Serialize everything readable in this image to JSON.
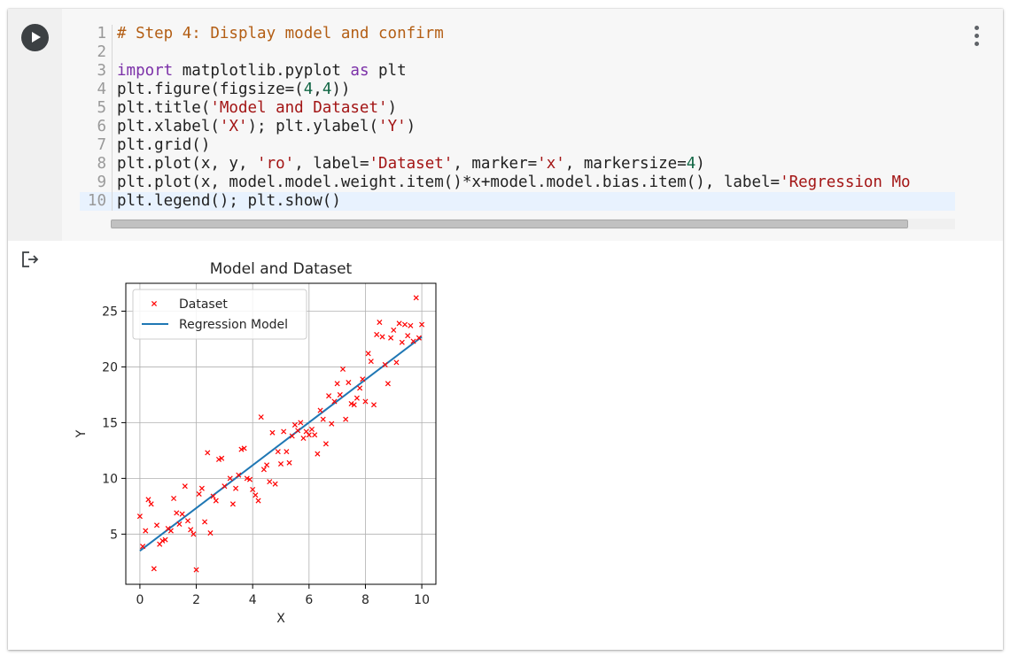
{
  "code_cell": {
    "lines": [
      {
        "num": "1",
        "tokens": [
          {
            "t": "# Step 4: Display model and confirm",
            "c": "cm"
          }
        ]
      },
      {
        "num": "2",
        "tokens": []
      },
      {
        "num": "3",
        "tokens": [
          {
            "t": "import",
            "c": "kw"
          },
          {
            "t": " matplotlib.pyplot ",
            "c": ""
          },
          {
            "t": "as",
            "c": "kw"
          },
          {
            "t": " plt",
            "c": ""
          }
        ]
      },
      {
        "num": "4",
        "tokens": [
          {
            "t": "plt.figure(figsize=(",
            "c": ""
          },
          {
            "t": "4",
            "c": "num"
          },
          {
            "t": ",",
            "c": ""
          },
          {
            "t": "4",
            "c": "num"
          },
          {
            "t": "))",
            "c": ""
          }
        ]
      },
      {
        "num": "5",
        "tokens": [
          {
            "t": "plt.title(",
            "c": ""
          },
          {
            "t": "'Model and Dataset'",
            "c": "str"
          },
          {
            "t": ")",
            "c": ""
          }
        ]
      },
      {
        "num": "6",
        "tokens": [
          {
            "t": "plt.xlabel(",
            "c": ""
          },
          {
            "t": "'X'",
            "c": "str"
          },
          {
            "t": "); plt.ylabel(",
            "c": ""
          },
          {
            "t": "'Y'",
            "c": "str"
          },
          {
            "t": ")",
            "c": ""
          }
        ]
      },
      {
        "num": "7",
        "tokens": [
          {
            "t": "plt.grid()",
            "c": ""
          }
        ]
      },
      {
        "num": "8",
        "tokens": [
          {
            "t": "plt.plot(x, y, ",
            "c": ""
          },
          {
            "t": "'ro'",
            "c": "str"
          },
          {
            "t": ", label=",
            "c": ""
          },
          {
            "t": "'Dataset'",
            "c": "str"
          },
          {
            "t": ", marker=",
            "c": ""
          },
          {
            "t": "'x'",
            "c": "str"
          },
          {
            "t": ", markersize=",
            "c": ""
          },
          {
            "t": "4",
            "c": "num"
          },
          {
            "t": ")",
            "c": ""
          }
        ]
      },
      {
        "num": "9",
        "tokens": [
          {
            "t": "plt.plot(x, model.model.weight.item()*x+model.model.bias.item(), label=",
            "c": ""
          },
          {
            "t": "'Regression Mo",
            "c": "str"
          }
        ]
      },
      {
        "num": "10",
        "tokens": [
          {
            "t": "plt.legend(); plt.show()",
            "c": ""
          }
        ]
      }
    ]
  },
  "icons": {
    "run": "play-circle-icon",
    "menu": "more-vert-icon",
    "output": "output-redirect-icon"
  },
  "colors": {
    "point": "#ff0000",
    "line": "#1f77b4",
    "code_bg": "#f7f7f7"
  },
  "chart_data": {
    "type": "scatter",
    "title": "Model and Dataset",
    "xlabel": "X",
    "ylabel": "Y",
    "xlim": [
      -0.5,
      10.5
    ],
    "ylim": [
      0.5,
      27.5
    ],
    "xticks": [
      0,
      2,
      4,
      6,
      8,
      10
    ],
    "yticks": [
      5,
      10,
      15,
      20,
      25
    ],
    "grid": true,
    "legend": {
      "position": "top-left",
      "entries": [
        "Dataset",
        "Regression Model"
      ]
    },
    "series": [
      {
        "name": "Dataset",
        "kind": "scatter",
        "marker": "x",
        "color": "#ff0000",
        "points": [
          [
            0.0,
            6.6
          ],
          [
            0.1,
            3.9
          ],
          [
            0.2,
            5.3
          ],
          [
            0.3,
            8.1
          ],
          [
            0.4,
            7.7
          ],
          [
            0.5,
            1.9
          ],
          [
            0.6,
            5.8
          ],
          [
            0.7,
            4.1
          ],
          [
            0.8,
            4.4
          ],
          [
            0.9,
            4.5
          ],
          [
            1.0,
            5.5
          ],
          [
            1.1,
            5.3
          ],
          [
            1.2,
            8.2
          ],
          [
            1.3,
            6.9
          ],
          [
            1.4,
            5.9
          ],
          [
            1.5,
            6.8
          ],
          [
            1.6,
            9.3
          ],
          [
            1.7,
            6.2
          ],
          [
            1.8,
            5.4
          ],
          [
            1.9,
            5.0
          ],
          [
            2.0,
            1.8
          ],
          [
            2.1,
            8.6
          ],
          [
            2.2,
            9.1
          ],
          [
            2.3,
            6.1
          ],
          [
            2.4,
            12.3
          ],
          [
            2.5,
            5.1
          ],
          [
            2.6,
            8.4
          ],
          [
            2.7,
            8.0
          ],
          [
            2.8,
            11.7
          ],
          [
            2.9,
            11.8
          ],
          [
            3.0,
            9.3
          ],
          [
            3.2,
            10.0
          ],
          [
            3.3,
            7.7
          ],
          [
            3.4,
            9.1
          ],
          [
            3.5,
            10.3
          ],
          [
            3.6,
            12.6
          ],
          [
            3.7,
            12.7
          ],
          [
            3.8,
            10.0
          ],
          [
            3.9,
            9.9
          ],
          [
            4.0,
            9.0
          ],
          [
            4.1,
            8.5
          ],
          [
            4.2,
            8.0
          ],
          [
            4.3,
            15.5
          ],
          [
            4.4,
            10.8
          ],
          [
            4.5,
            11.2
          ],
          [
            4.6,
            9.7
          ],
          [
            4.7,
            14.1
          ],
          [
            4.8,
            9.5
          ],
          [
            4.9,
            12.4
          ],
          [
            5.0,
            11.3
          ],
          [
            5.1,
            14.2
          ],
          [
            5.2,
            12.4
          ],
          [
            5.3,
            11.4
          ],
          [
            5.4,
            13.8
          ],
          [
            5.5,
            14.8
          ],
          [
            5.6,
            14.3
          ],
          [
            5.7,
            15.0
          ],
          [
            5.8,
            13.6
          ],
          [
            5.9,
            14.2
          ],
          [
            6.0,
            13.9
          ],
          [
            6.1,
            14.4
          ],
          [
            6.2,
            13.9
          ],
          [
            6.3,
            12.2
          ],
          [
            6.4,
            16.1
          ],
          [
            6.5,
            15.3
          ],
          [
            6.6,
            13.1
          ],
          [
            6.7,
            17.4
          ],
          [
            6.8,
            14.9
          ],
          [
            6.9,
            16.9
          ],
          [
            7.0,
            18.5
          ],
          [
            7.1,
            17.5
          ],
          [
            7.2,
            19.8
          ],
          [
            7.3,
            15.3
          ],
          [
            7.4,
            18.6
          ],
          [
            7.5,
            16.7
          ],
          [
            7.6,
            16.6
          ],
          [
            7.7,
            17.2
          ],
          [
            7.8,
            18.1
          ],
          [
            7.9,
            18.9
          ],
          [
            8.0,
            16.9
          ],
          [
            8.1,
            21.2
          ],
          [
            8.2,
            20.5
          ],
          [
            8.3,
            16.6
          ],
          [
            8.4,
            22.9
          ],
          [
            8.5,
            24.0
          ],
          [
            8.6,
            22.7
          ],
          [
            8.7,
            20.2
          ],
          [
            8.8,
            18.5
          ],
          [
            8.9,
            22.6
          ],
          [
            9.0,
            23.3
          ],
          [
            9.1,
            20.4
          ],
          [
            9.2,
            23.9
          ],
          [
            9.3,
            22.2
          ],
          [
            9.4,
            23.8
          ],
          [
            9.5,
            22.8
          ],
          [
            9.6,
            23.7
          ],
          [
            9.7,
            22.3
          ],
          [
            9.8,
            26.2
          ],
          [
            9.9,
            22.6
          ],
          [
            10.0,
            23.8
          ]
        ]
      },
      {
        "name": "Regression Model",
        "kind": "line",
        "color": "#1f77b4",
        "points": [
          [
            0.0,
            3.5
          ],
          [
            10.0,
            22.7
          ]
        ]
      }
    ]
  }
}
